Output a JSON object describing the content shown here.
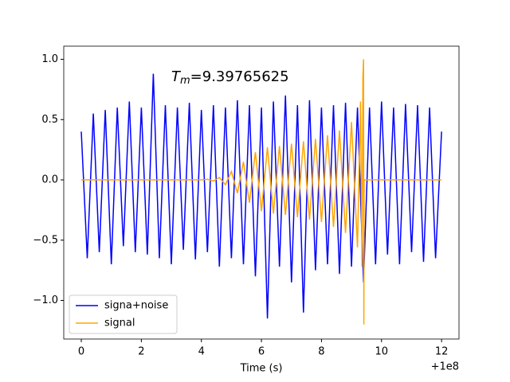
{
  "chart_data": {
    "type": "line",
    "annotation": {
      "symbol": "T",
      "subscript": "m",
      "text": "=9.39765625"
    },
    "xlabel": "Time (s)",
    "x_offset_label": "+1e8",
    "xlim": [
      -0.584,
      12.58
    ],
    "xticks": [
      0,
      2,
      4,
      6,
      8,
      10,
      12
    ],
    "ylim": [
      -1.32,
      1.109
    ],
    "yticks": [
      {
        "value": -1,
        "label": "−1.0"
      },
      {
        "value": -0.5,
        "label": "−0.5"
      },
      {
        "value": 0,
        "label": "0.0"
      },
      0.5,
      {
        "value": 1,
        "label": "1.0"
      }
    ],
    "legend": "lower left",
    "series": [
      {
        "name": "signa+noise",
        "color": "#0000ff",
        "x": [
          0,
          0.2,
          0.4,
          0.6,
          0.8,
          1.0,
          1.2,
          1.4,
          1.6,
          1.8,
          2.0,
          2.2,
          2.4,
          2.6,
          2.8,
          3.0,
          3.2,
          3.4,
          3.6,
          3.8,
          4.0,
          4.2,
          4.4,
          4.6,
          4.8,
          5.0,
          5.2,
          5.4,
          5.6,
          5.8,
          6.0,
          6.2,
          6.4,
          6.6,
          6.8,
          7.0,
          7.2,
          7.4,
          7.6,
          7.8,
          8.0,
          8.2,
          8.4,
          8.6,
          8.8,
          9.0,
          9.2,
          9.4,
          9.6,
          9.8,
          10.0,
          10.2,
          10.4,
          10.6,
          10.8,
          11.0,
          11.2,
          11.4,
          11.6,
          11.8,
          12.0
        ],
        "values": [
          0.4,
          -0.65,
          0.55,
          -0.6,
          0.58,
          -0.7,
          0.6,
          -0.55,
          0.65,
          -0.6,
          0.6,
          -0.62,
          0.88,
          -0.65,
          0.62,
          -0.7,
          0.6,
          -0.58,
          0.64,
          -0.66,
          0.58,
          -0.6,
          0.62,
          -0.72,
          0.6,
          -0.65,
          0.66,
          -0.7,
          0.62,
          -0.8,
          0.6,
          -1.15,
          0.65,
          -0.72,
          0.7,
          -0.85,
          0.62,
          -1.1,
          0.66,
          -0.75,
          0.6,
          -0.7,
          0.62,
          -0.78,
          0.64,
          -0.72,
          0.6,
          -0.85,
          0.6,
          -0.7,
          0.65,
          -0.62,
          0.6,
          -0.7,
          0.63,
          -0.6,
          0.62,
          -0.68,
          0.6,
          -0.65,
          0.4
        ]
      },
      {
        "name": "signal",
        "color": "#ffa500",
        "x": [
          0,
          4.0,
          4.2,
          4.4,
          4.6,
          4.8,
          5.0,
          5.2,
          5.4,
          5.6,
          5.8,
          6.0,
          6.2,
          6.4,
          6.6,
          6.8,
          7.0,
          7.2,
          7.4,
          7.6,
          7.8,
          8.0,
          8.2,
          8.4,
          8.6,
          8.8,
          9.0,
          9.2,
          9.3,
          9.35,
          9.38,
          9.4,
          9.41,
          9.42,
          12.0
        ],
        "values": [
          0,
          0,
          0.005,
          -0.01,
          0.02,
          -0.04,
          0.07,
          -0.11,
          0.15,
          -0.19,
          0.23,
          -0.26,
          0.27,
          -0.28,
          0.28,
          -0.29,
          0.3,
          -0.31,
          0.32,
          -0.33,
          0.34,
          -0.35,
          0.37,
          -0.39,
          0.41,
          -0.44,
          0.48,
          -0.56,
          0.65,
          -0.72,
          0.85,
          1.0,
          -1.2,
          0,
          0
        ]
      }
    ]
  }
}
